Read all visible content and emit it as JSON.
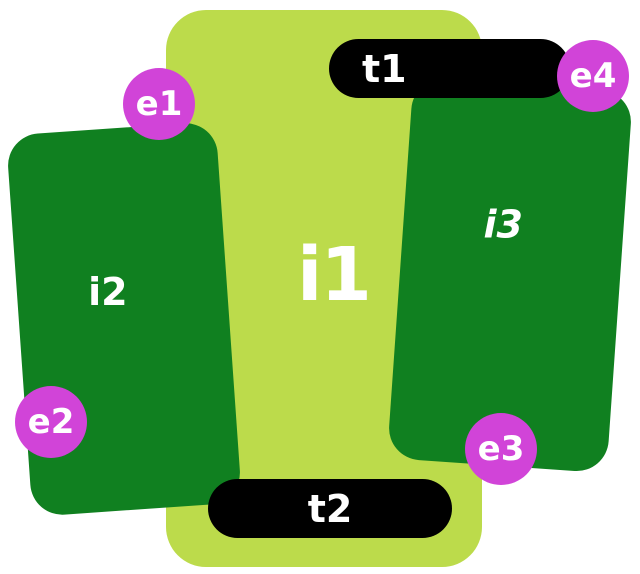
{
  "colors": {
    "i1_fill": "#bcdb4b",
    "card_fill": "#108020",
    "terminal_fill": "#000000",
    "marker_fill": "#d144d8",
    "text": "#ffffff"
  },
  "nodes": {
    "i1": "i1",
    "i2": "i2",
    "i3": "i3"
  },
  "terminals": {
    "t1": "t1",
    "t2": "t2"
  },
  "markers": {
    "e1": "e1",
    "e2": "e2",
    "e3": "e3",
    "e4": "e4"
  }
}
